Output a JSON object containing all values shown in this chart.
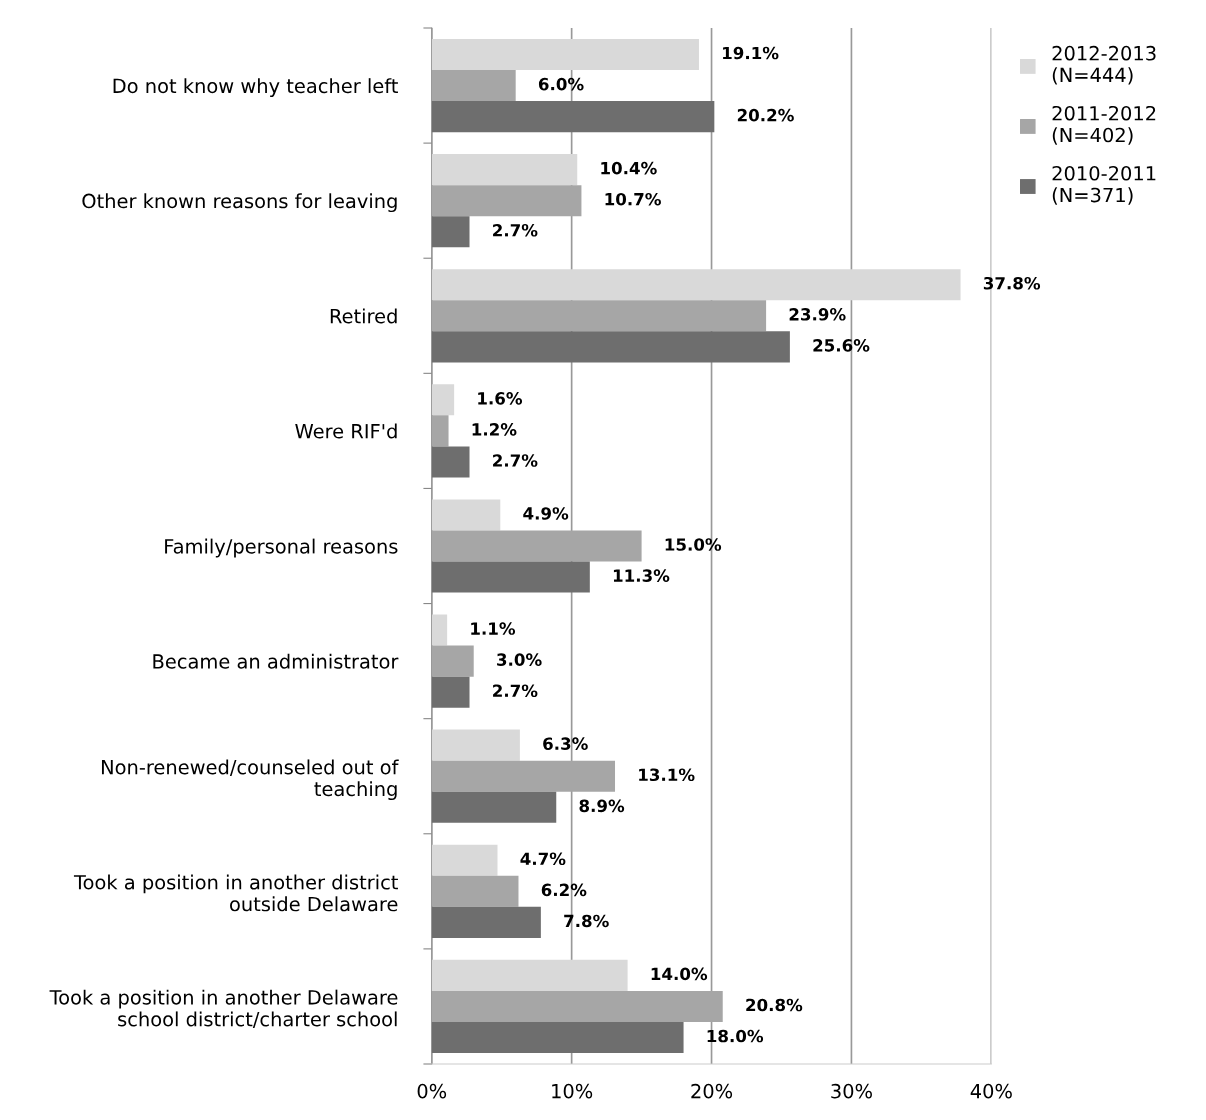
{
  "chart_data": {
    "type": "bar",
    "orientation": "horizontal",
    "categories": [
      "Do not know why teacher left",
      "Other known reasons for leaving",
      "Retired",
      "Were RIF'd",
      "Family/personal reasons",
      "Became an administrator",
      "Non-renewed/counseled out of\nteaching",
      "Took a position in another district\noutside Delaware",
      "Took a position in another Delaware\nschool district/charter school"
    ],
    "series": [
      {
        "name": "2012-2013\n(N=444)",
        "color": "#d9d9d9",
        "values": [
          19.1,
          10.4,
          37.8,
          1.6,
          4.9,
          1.1,
          6.3,
          4.7,
          14.0
        ],
        "value_labels": [
          "19.1%",
          "10.4%",
          "37.8%",
          "1.6%",
          "4.9%",
          "1.1%",
          "6.3%",
          "4.7%",
          "14.0%"
        ]
      },
      {
        "name": "2011-2012\n(N=402)",
        "color": "#a6a6a6",
        "values": [
          6.0,
          10.7,
          23.9,
          1.2,
          15.0,
          3.0,
          13.1,
          6.2,
          20.8
        ],
        "value_labels": [
          "6.0%",
          "10.7%",
          "23.9%",
          "1.2%",
          "15.0%",
          "3.0%",
          "13.1%",
          "6.2%",
          "20.8%"
        ]
      },
      {
        "name": "2010-2011\n(N=371)",
        "color": "#6e6e6e",
        "values": [
          20.2,
          2.7,
          25.6,
          2.7,
          11.3,
          2.7,
          8.9,
          7.8,
          18.0
        ],
        "value_labels": [
          "20.2%",
          "2.7%",
          "25.6%",
          "2.7%",
          "11.3%",
          "2.7%",
          "8.9%",
          "7.8%",
          "18.0%"
        ]
      }
    ],
    "xlim": [
      0,
      40
    ],
    "xticks": [
      {
        "value": 0,
        "label": "0%"
      },
      {
        "value": 10,
        "label": "10%"
      },
      {
        "value": 20,
        "label": "20%"
      },
      {
        "value": 30,
        "label": "30%"
      },
      {
        "value": 40,
        "label": "40%"
      }
    ],
    "grid": "x",
    "legend": "top right"
  }
}
